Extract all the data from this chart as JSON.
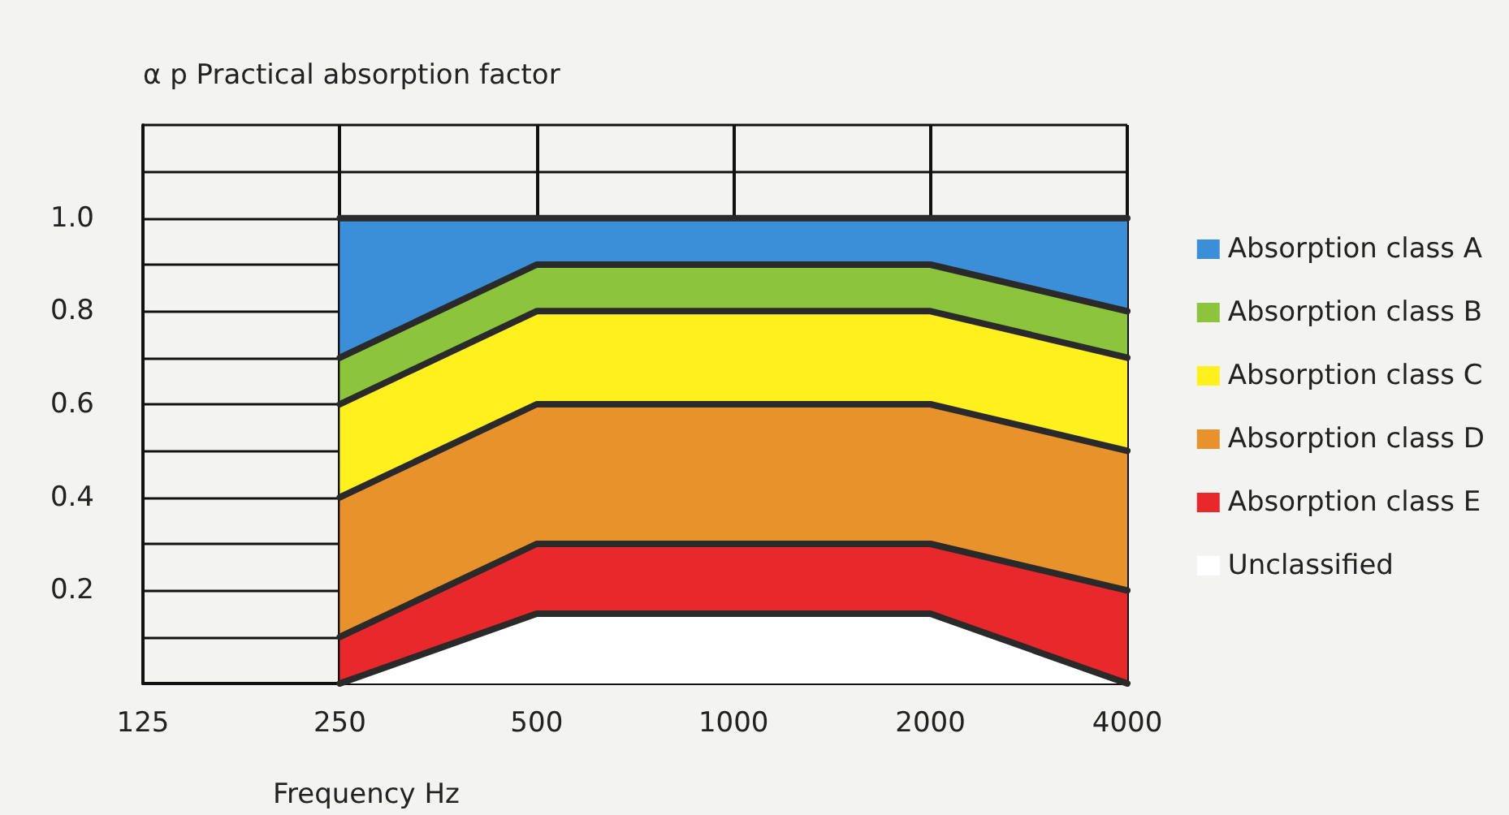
{
  "chart_data": {
    "type": "area",
    "stacked": true,
    "ylabel": "α p Practical absorption factor",
    "xlabel": "Frequency Hz",
    "categories": [
      "125",
      "250",
      "500",
      "1000",
      "2000",
      "4000"
    ],
    "series": [
      {
        "name": "Unclassified",
        "color": "#ffffff",
        "values": [
          null,
          0,
          0.15,
          0.15,
          0.15,
          0
        ]
      },
      {
        "name": "Absorption class E",
        "color": "#e8282a",
        "values": [
          null,
          0.1,
          0.15,
          0.15,
          0.15,
          0.2
        ]
      },
      {
        "name": "Absorption class D",
        "color": "#e8922c",
        "values": [
          null,
          0.3,
          0.3,
          0.3,
          0.3,
          0.3
        ]
      },
      {
        "name": "Absorption class C",
        "color": "#fff01e",
        "values": [
          null,
          0.2,
          0.2,
          0.2,
          0.2,
          0.2
        ]
      },
      {
        "name": "Absorption class B",
        "color": "#8cc43c",
        "values": [
          null,
          0.1,
          0.1,
          0.1,
          0.1,
          0.1
        ]
      },
      {
        "name": "Absorption class A",
        "color": "#3a8fd8",
        "values": [
          null,
          0.3,
          0.1,
          0.1,
          0.1,
          0.2
        ]
      }
    ],
    "ylim": [
      0,
      1.2
    ],
    "yticks": [
      {
        "value": 0,
        "label": null
      },
      {
        "value": 0.1,
        "label": null
      },
      0.2,
      {
        "value": 0.3,
        "label": null
      },
      0.4,
      {
        "value": 0.5,
        "label": null
      },
      0.6,
      {
        "value": 0.7,
        "label": null
      },
      0.8,
      {
        "value": 0.9,
        "label": null
      },
      {
        "value": 1.0,
        "label": "1.0"
      },
      {
        "value": 1.1,
        "label": null
      },
      {
        "value": 1.2,
        "label": null
      }
    ],
    "grid": true,
    "legend": "right"
  }
}
